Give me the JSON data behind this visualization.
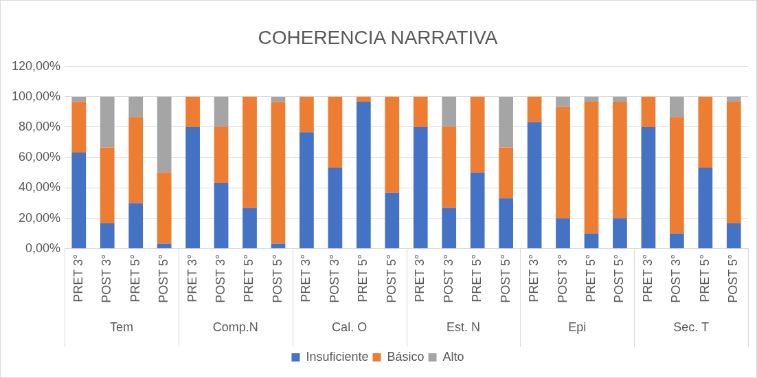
{
  "chart_data": {
    "type": "bar",
    "title": "COHERENCIA NARRATIVA",
    "stacked": true,
    "categories": [
      "PRET 3°",
      "POST 3°",
      "PRET 5°",
      "POST 5°",
      "PRET 3°",
      "POST 3°",
      "PRET 5°",
      "POST 5°",
      "PRET 3°",
      "POST 3°",
      "PRET 5°",
      "POST 5°",
      "PRET 3°",
      "POST 3°",
      "PRET 5°",
      "POST 5°",
      "PRET 3°",
      "POST 3°",
      "PRET 5°",
      "POST 5°",
      "PRET 3°",
      "POST 3°",
      "PRET 5°",
      "POST 5°"
    ],
    "series": [
      {
        "name": "Insuficiente",
        "color": "#4472c4",
        "values": [
          63.3,
          16.7,
          30,
          3.3,
          80,
          43.3,
          26.7,
          3.3,
          76.7,
          53.3,
          96.7,
          36.7,
          80,
          26.7,
          50,
          33.3,
          83.3,
          20,
          10,
          20,
          80,
          10,
          53.3,
          16.7
        ]
      },
      {
        "name": "Básico",
        "color": "#ed7d31",
        "values": [
          33.3,
          50,
          56.7,
          46.7,
          20,
          36.7,
          73.3,
          93.3,
          23.3,
          46.7,
          3.3,
          63.3,
          20,
          53.3,
          50,
          33.3,
          16.7,
          73.3,
          86.7,
          76.7,
          20,
          76.7,
          46.7,
          80
        ]
      },
      {
        "name": "Alto",
        "color": "#a5a5a5",
        "values": [
          3.3,
          33.3,
          13.3,
          50,
          0,
          20,
          0,
          3.3,
          0,
          0,
          0,
          0,
          0,
          20,
          0,
          33.3,
          0,
          6.7,
          3.3,
          3.3,
          0,
          13.3,
          0,
          3.3
        ]
      }
    ],
    "ylim": [
      0,
      120
    ],
    "yticks": [
      {
        "value": 0,
        "label": "0,00%"
      },
      {
        "value": 20,
        "label": "20,00%"
      },
      {
        "value": 40,
        "label": "40,00%"
      },
      {
        "value": 60,
        "label": "60,00%"
      },
      {
        "value": 80,
        "label": "80,00%"
      },
      {
        "value": 100,
        "label": "100,00%"
      },
      {
        "value": 120,
        "label": "120,00%"
      }
    ],
    "grid": "y",
    "legend": "bottom",
    "annotations": [
      "Tem",
      "Comp.N",
      "Cal. O",
      "Est. N",
      "Epi",
      "Sec. T"
    ]
  }
}
